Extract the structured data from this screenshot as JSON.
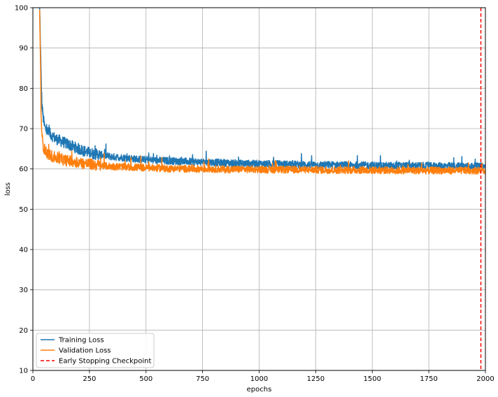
{
  "chart_data": {
    "type": "line",
    "title": "",
    "xlabel": "epochs",
    "ylabel": "loss",
    "xlim": [
      0,
      2000
    ],
    "ylim": [
      10,
      100
    ],
    "xticks": [
      0,
      250,
      500,
      750,
      1000,
      1250,
      1500,
      1750,
      2000
    ],
    "yticks": [
      10,
      20,
      30,
      40,
      50,
      60,
      70,
      80,
      90,
      100
    ],
    "grid": true,
    "legend_position": "bottom-left",
    "series": [
      {
        "name": "Training Loss",
        "color": "#1f77b4",
        "x": [
          30,
          33,
          36,
          40,
          45,
          50,
          55,
          60,
          70,
          80,
          90,
          100,
          120,
          140,
          160,
          180,
          200,
          225,
          250,
          275,
          300,
          350,
          400,
          450,
          500,
          550,
          600,
          650,
          700,
          750,
          800,
          850,
          900,
          950,
          1000,
          1050,
          1100,
          1150,
          1200,
          1250,
          1300,
          1350,
          1400,
          1450,
          1500,
          1550,
          1600,
          1650,
          1700,
          1750,
          1800,
          1850,
          1900,
          1950,
          1985,
          2000
        ],
        "values": [
          100,
          92,
          84,
          76,
          73,
          71,
          70,
          69.5,
          69,
          68.5,
          68,
          67.5,
          67,
          66.5,
          66,
          65.5,
          65,
          64.5,
          64,
          63.7,
          63.5,
          63,
          62.8,
          62.5,
          62.3,
          62.1,
          62,
          61.9,
          61.8,
          61.7,
          61.6,
          61.5,
          61.4,
          61.3,
          61.3,
          61.2,
          61.2,
          61.1,
          61.1,
          61,
          61,
          61,
          60.9,
          60.9,
          60.9,
          60.8,
          60.8,
          60.8,
          60.8,
          60.7,
          60.7,
          60.7,
          60.7,
          60.6,
          60.6,
          60.6
        ]
      },
      {
        "name": "Validation Loss",
        "color": "#ff7f0e",
        "x": [
          30,
          33,
          36,
          40,
          45,
          50,
          55,
          60,
          70,
          80,
          90,
          100,
          120,
          140,
          160,
          180,
          200,
          225,
          250,
          275,
          300,
          350,
          400,
          450,
          500,
          550,
          600,
          650,
          700,
          750,
          800,
          850,
          900,
          950,
          1000,
          1050,
          1100,
          1150,
          1200,
          1250,
          1300,
          1350,
          1400,
          1450,
          1500,
          1550,
          1600,
          1650,
          1700,
          1750,
          1800,
          1850,
          1900,
          1950,
          1985,
          2000
        ],
        "values": [
          100,
          88,
          75,
          68,
          66,
          65,
          64.5,
          64,
          63.6,
          63.3,
          63,
          62.8,
          62.5,
          62.2,
          62,
          61.8,
          61.6,
          61.4,
          61.2,
          61,
          60.8,
          60.6,
          60.5,
          60.4,
          60.3,
          60.2,
          60.1,
          60.1,
          60,
          60,
          60,
          59.9,
          59.9,
          59.9,
          59.9,
          59.8,
          59.8,
          59.8,
          59.8,
          59.8,
          59.7,
          59.7,
          59.7,
          59.7,
          59.7,
          59.7,
          59.6,
          59.6,
          59.6,
          59.6,
          59.6,
          59.6,
          59.6,
          59.6,
          59.6,
          59.6
        ]
      }
    ],
    "vlines": [
      {
        "name": "Early Stopping Checkpoint",
        "x": 1980,
        "color": "#ff0000",
        "style": "dashed"
      }
    ]
  }
}
